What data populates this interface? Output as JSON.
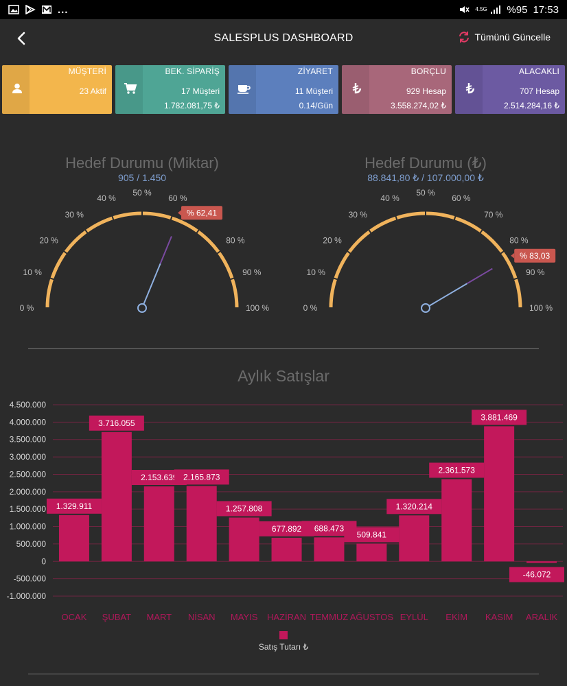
{
  "status_bar": {
    "battery": "%95",
    "time": "17:53",
    "network": "4.5G"
  },
  "header": {
    "title": "SALESPLUS DASHBOARD",
    "refresh_label": "Tümünü Güncelle"
  },
  "cards": [
    {
      "label": "MÜŞTERİ",
      "line1": "23 Aktif",
      "line2": "",
      "color": "#f3b64c",
      "icon": "user-icon"
    },
    {
      "label": "BEK. SİPARİŞ",
      "line1": "17 Müşteri",
      "line2": "1.782.081,75 ₺",
      "color": "#4fa595",
      "icon": "cart-icon"
    },
    {
      "label": "ZİYARET",
      "line1": "11 Müşteri",
      "line2": "0.14/Gün",
      "color": "#5c7fbd",
      "icon": "coffee-icon"
    },
    {
      "label": "BORÇLU",
      "line1": "929 Hesap",
      "line2": "3.558.274,02 ₺",
      "color": "#a8677a",
      "icon": "lira-icon"
    },
    {
      "label": "ALACAKLI",
      "line1": "707 Hesap",
      "line2": "2.514.284,16 ₺",
      "color": "#6c5aa2",
      "icon": "lira-icon"
    }
  ],
  "gauges": [
    {
      "title": "Hedef Durumu (Miktar)",
      "subtitle": "905 / 1.450",
      "percent": 62.41,
      "badge": "% 62,41"
    },
    {
      "title": "Hedef Durumu (₺)",
      "subtitle": "88.841,80 ₺ / 107.000,00 ₺",
      "percent": 83.03,
      "badge": "% 83,03"
    }
  ],
  "gauge_ticks": [
    "0 %",
    "10 %",
    "20 %",
    "30 %",
    "40 %",
    "50 %",
    "60 %",
    "70 %",
    "80 %",
    "90 %",
    "100 %"
  ],
  "colors": {
    "gauge_arc": "#f0b35c",
    "needle_base": "#8fb0e0",
    "needle_tip": "#7a4aa0",
    "badge": "#c9574f",
    "bar": "#c2185b",
    "grid": "#6e2540",
    "axis_label": "#b0185a"
  },
  "chart_data": {
    "type": "bar",
    "title": "Aylık Satışlar",
    "categories": [
      "OCAK",
      "ŞUBAT",
      "MART",
      "NİSAN",
      "MAYIS",
      "HAZİRAN",
      "TEMMUZ",
      "AĞUSTOS",
      "EYLÜL",
      "EKİM",
      "KASIM",
      "ARALIK"
    ],
    "series": [
      {
        "name": "Satış Tutarı ₺",
        "values": [
          1329911,
          3716055,
          2153639,
          2165873,
          1257808,
          677892,
          688473,
          509841,
          1320214,
          2361573,
          3881469,
          -46072
        ],
        "labels": [
          "1.329.911",
          "3.716.055",
          "2.153.639",
          "2.165.873",
          "1.257.808",
          "677.892",
          "688.473",
          "509.841",
          "1.320.214",
          "2.361.573",
          "3.881.469",
          "-46.072"
        ]
      }
    ],
    "ylim": [
      -1000000,
      4500000
    ],
    "yticks": [
      4500000,
      4000000,
      3500000,
      3000000,
      2500000,
      2000000,
      1500000,
      1000000,
      500000,
      0,
      -500000,
      -1000000
    ],
    "ytick_labels": [
      "4.500.000",
      "4.000.000",
      "3.500.000",
      "3.000.000",
      "2.500.000",
      "2.000.000",
      "1.500.000",
      "1.000.000",
      "500.000",
      "0",
      "-500.000",
      "-1.000.000"
    ],
    "grid": true,
    "legend": "bottom"
  }
}
